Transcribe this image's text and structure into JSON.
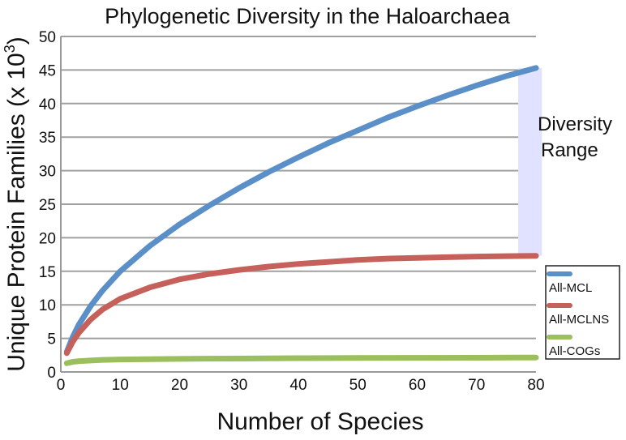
{
  "chart_data": {
    "type": "line",
    "title": "Phylogenetic Diversity in the Haloarchaea",
    "xlabel": "Number of Species",
    "ylabel": "Unique Protein Families (x 10",
    "ylabel_superscript": "3",
    "ylabel_close": ")",
    "xlim": [
      0,
      80
    ],
    "ylim": [
      0,
      50
    ],
    "xticks": [
      0,
      10,
      20,
      30,
      40,
      50,
      60,
      70,
      80
    ],
    "yticks": [
      0,
      5,
      10,
      15,
      20,
      25,
      30,
      35,
      40,
      45,
      50
    ],
    "grid": "horizontal",
    "legend_position": "bottom-right",
    "series": [
      {
        "name": "All-MCL",
        "color": "#5b8fc7",
        "x": [
          1,
          2,
          3,
          5,
          7,
          10,
          15,
          20,
          25,
          30,
          35,
          40,
          45,
          50,
          55,
          60,
          65,
          70,
          75,
          80
        ],
        "y": [
          3.0,
          5.2,
          7.0,
          9.8,
          12.1,
          15.0,
          18.8,
          22.0,
          24.8,
          27.4,
          29.8,
          32.0,
          34.1,
          36.0,
          37.9,
          39.6,
          41.2,
          42.7,
          44.1,
          45.3
        ]
      },
      {
        "name": "All-MCLNS",
        "color": "#c5605a",
        "x": [
          1,
          2,
          3,
          5,
          7,
          10,
          15,
          20,
          25,
          30,
          35,
          40,
          45,
          50,
          55,
          60,
          65,
          70,
          75,
          80
        ],
        "y": [
          2.8,
          4.5,
          5.8,
          7.8,
          9.3,
          10.9,
          12.6,
          13.8,
          14.6,
          15.2,
          15.7,
          16.1,
          16.4,
          16.7,
          16.9,
          17.0,
          17.1,
          17.2,
          17.25,
          17.3
        ]
      },
      {
        "name": "All-COGs",
        "color": "#9bbf5c",
        "x": [
          1,
          2,
          3,
          5,
          7,
          10,
          15,
          20,
          30,
          40,
          50,
          60,
          70,
          80
        ],
        "y": [
          1.3,
          1.5,
          1.6,
          1.7,
          1.8,
          1.85,
          1.9,
          1.95,
          2.0,
          2.05,
          2.08,
          2.1,
          2.12,
          2.15
        ]
      }
    ],
    "annotations": [
      {
        "text_line1": "Diversity",
        "text_line2": "Range",
        "x_from": 77,
        "x_to": 81,
        "y_from": 17.3,
        "y_to": 45.3,
        "color": "#e1e2ff"
      }
    ]
  }
}
